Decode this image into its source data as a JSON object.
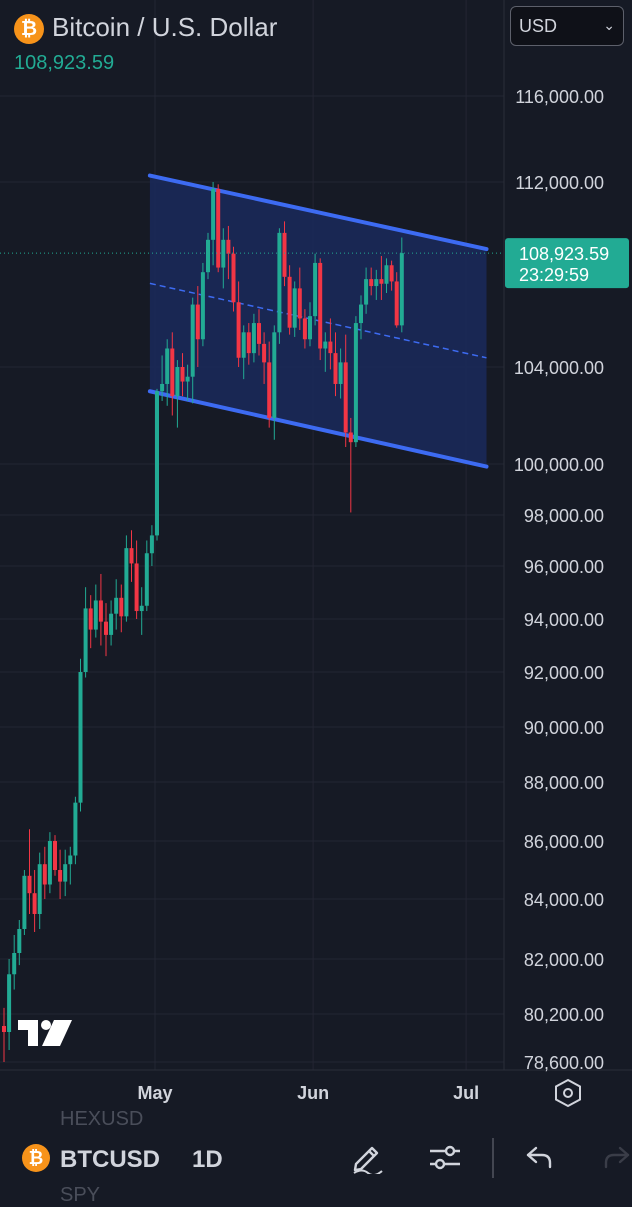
{
  "header": {
    "title": "Bitcoin / U.S. Dollar",
    "last_price": "108,923.59",
    "currency": "USD"
  },
  "price_tag": {
    "price": "108,923.59",
    "countdown": "23:29:59"
  },
  "chart_data": {
    "type": "candlestick",
    "y_ticks": [
      "116,000.00",
      "112,000.00",
      "104,000.00",
      "100,000.00",
      "98,000.00",
      "96,000.00",
      "94,000.00",
      "92,000.00",
      "90,000.00",
      "88,000.00",
      "86,000.00",
      "84,000.00",
      "82,000.00",
      "80,200.00",
      "78,600.00"
    ],
    "y_tick_values": [
      116000,
      112000,
      104000,
      100000,
      98000,
      96000,
      94000,
      92000,
      90000,
      88000,
      86000,
      84000,
      82000,
      80200,
      78600
    ],
    "x_labels": [
      "May",
      "Jun",
      "Jul"
    ],
    "x_label_days": [
      30,
      61,
      91
    ],
    "days_per_candle": 1,
    "last_price": 108923.59,
    "candles": [
      [
        79800,
        80400,
        78600,
        79600
      ],
      [
        79600,
        82000,
        79000,
        81500
      ],
      [
        81500,
        82800,
        81000,
        82200
      ],
      [
        82200,
        83300,
        81800,
        83000
      ],
      [
        83000,
        85000,
        82800,
        84800
      ],
      [
        84800,
        86400,
        83500,
        84200
      ],
      [
        84200,
        85000,
        82900,
        83500
      ],
      [
        83500,
        85600,
        83000,
        85200
      ],
      [
        85200,
        85800,
        84000,
        84500
      ],
      [
        84500,
        86300,
        84200,
        86000
      ],
      [
        86000,
        86200,
        84800,
        85000
      ],
      [
        85000,
        85700,
        84000,
        84600
      ],
      [
        84600,
        85700,
        84100,
        85200
      ],
      [
        85200,
        85800,
        84500,
        85500
      ],
      [
        85500,
        87500,
        85200,
        87300
      ],
      [
        87300,
        92500,
        87000,
        92000
      ],
      [
        92000,
        95200,
        91800,
        94400
      ],
      [
        94400,
        94900,
        92900,
        93600
      ],
      [
        93600,
        95300,
        93300,
        94700
      ],
      [
        94700,
        95700,
        93000,
        93900
      ],
      [
        93900,
        94600,
        92600,
        93400
      ],
      [
        93400,
        94700,
        93000,
        94200
      ],
      [
        94200,
        95500,
        93600,
        94800
      ],
      [
        94800,
        95300,
        93500,
        94100
      ],
      [
        94100,
        97200,
        93900,
        96700
      ],
      [
        96700,
        97400,
        95400,
        96100
      ],
      [
        96100,
        97000,
        94000,
        94300
      ],
      [
        94300,
        95200,
        93400,
        94500
      ],
      [
        94500,
        97000,
        94300,
        96500
      ],
      [
        96500,
        97600,
        96000,
        97200
      ],
      [
        97200,
        103100,
        97000,
        103000
      ],
      [
        103000,
        104500,
        102600,
        103300
      ],
      [
        103300,
        105200,
        102400,
        104800
      ],
      [
        104800,
        105500,
        102000,
        102800
      ],
      [
        102800,
        104300,
        101500,
        104000
      ],
      [
        104000,
        104600,
        102800,
        103400
      ],
      [
        103400,
        104100,
        102600,
        103600
      ],
      [
        103600,
        107000,
        102500,
        106700
      ],
      [
        106700,
        107500,
        104000,
        105200
      ],
      [
        105200,
        108500,
        104900,
        108100
      ],
      [
        108100,
        109800,
        107800,
        109500
      ],
      [
        109500,
        112000,
        108400,
        111700
      ],
      [
        111700,
        111900,
        108100,
        108300
      ],
      [
        108300,
        110000,
        107400,
        109500
      ],
      [
        109500,
        110100,
        107800,
        108900
      ],
      [
        108900,
        109200,
        106400,
        106800
      ],
      [
        106800,
        107700,
        104000,
        104400
      ],
      [
        104400,
        105800,
        103500,
        105500
      ],
      [
        105500,
        105900,
        104100,
        104600
      ],
      [
        104600,
        106300,
        104200,
        105900
      ],
      [
        105900,
        106500,
        104500,
        105000
      ],
      [
        105000,
        105500,
        103300,
        104200
      ],
      [
        104200,
        105100,
        101500,
        101900
      ],
      [
        101900,
        105800,
        101000,
        105500
      ],
      [
        105500,
        110000,
        105000,
        109800
      ],
      [
        109800,
        110300,
        107500,
        107900
      ],
      [
        107900,
        108400,
        105400,
        105700
      ],
      [
        105700,
        107700,
        105300,
        107400
      ],
      [
        107400,
        108300,
        105600,
        106100
      ],
      [
        106100,
        106500,
        104800,
        105200
      ],
      [
        105200,
        106800,
        104900,
        106200
      ],
      [
        106200,
        108900,
        105800,
        108500
      ],
      [
        108500,
        108700,
        104300,
        104800
      ],
      [
        104800,
        105500,
        103800,
        105100
      ],
      [
        105100,
        106100,
        103900,
        104600
      ],
      [
        104600,
        105500,
        102800,
        103300
      ],
      [
        103300,
        104800,
        102700,
        104200
      ],
      [
        104200,
        105400,
        100700,
        101300
      ],
      [
        101300,
        101900,
        98100,
        100900
      ],
      [
        100900,
        106200,
        100700,
        105900
      ],
      [
        105900,
        107100,
        105200,
        106700
      ],
      [
        106700,
        108300,
        106300,
        107800
      ],
      [
        107800,
        108300,
        107100,
        107500
      ],
      [
        107500,
        108200,
        106900,
        107800
      ],
      [
        107800,
        108800,
        106900,
        107600
      ],
      [
        107600,
        108700,
        107200,
        108400
      ],
      [
        108400,
        108600,
        107300,
        107700
      ],
      [
        107700,
        108100,
        105700,
        105800
      ],
      [
        105800,
        109600,
        105500,
        108924
      ]
    ],
    "channel": {
      "upper": [
        [
          29,
          112300
        ],
        [
          95,
          109100
        ]
      ],
      "lower": [
        [
          29,
          103000
        ],
        [
          95,
          99900
        ]
      ],
      "color": "#3d6bf2",
      "fill": "#1a2a5c"
    }
  },
  "icons": {
    "logo": "bitcoin-icon",
    "tv_logo": "tradingview-logo",
    "settings": "settings-hexagon-icon"
  },
  "bottom_bar": {
    "ghost_above": "HEXUSD",
    "ghost_below": "SPY",
    "symbol": "BTCUSD",
    "interval": "1D"
  },
  "colors": {
    "up": "#22ab94",
    "down": "#f23645",
    "background": "#161a25",
    "grid": "#232633",
    "price_tag": "#22ab94"
  }
}
